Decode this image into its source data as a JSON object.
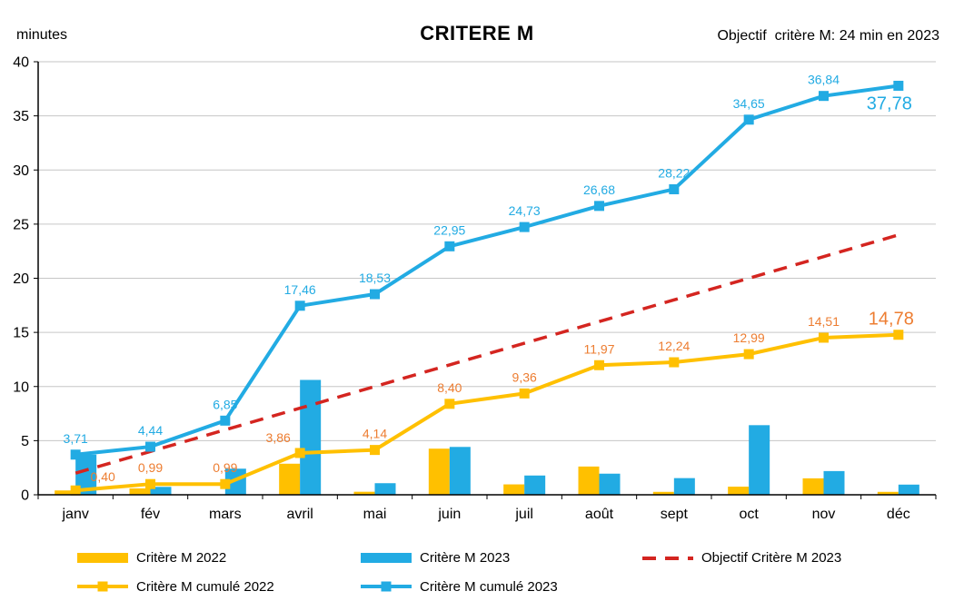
{
  "chart_data": {
    "type": "combo",
    "title": "CRITERE M",
    "ylabel": "minutes",
    "xlabel": "",
    "annotation": "Objectif  critère M: 24 min en 2023",
    "ylim": [
      0,
      40
    ],
    "yticks": [
      0,
      5,
      10,
      15,
      20,
      25,
      30,
      35,
      40
    ],
    "grid": true,
    "legend_position": "bottom",
    "categories": [
      "janv",
      "fév",
      "mars",
      "avril",
      "mai",
      "juin",
      "juil",
      "août",
      "sept",
      "oct",
      "nov",
      "déc"
    ],
    "series": [
      {
        "name": "Critère M 2022",
        "type": "bar",
        "color": "#FFC000",
        "values": [
          0.4,
          0.59,
          0.0,
          2.87,
          0.28,
          4.26,
          0.96,
          2.61,
          0.27,
          0.75,
          1.52,
          0.27
        ]
      },
      {
        "name": "Critère M 2023",
        "type": "bar",
        "color": "#22ABE3",
        "values": [
          3.71,
          0.73,
          2.41,
          10.61,
          1.07,
          4.42,
          1.78,
          1.95,
          1.54,
          6.43,
          2.19,
          0.94
        ]
      },
      {
        "name": "Critère M cumulé 2022",
        "type": "line",
        "color": "#FFC000",
        "label_color": "#ED7D31",
        "values": [
          0.4,
          0.99,
          0.99,
          3.86,
          4.14,
          8.4,
          9.36,
          11.97,
          12.24,
          12.99,
          14.51,
          14.78
        ],
        "point_labels": [
          "0,40",
          "0,99",
          "0,99",
          "3,86",
          "4,14",
          "8,40",
          "9,36",
          "11,97",
          "12,24",
          "12,99",
          "14,51",
          "14,78"
        ],
        "label_offsets": {
          "0": [
            30,
            -10
          ],
          "3": [
            -24,
            -12
          ],
          "11": [
            -8,
            -11
          ]
        },
        "emphasized_last_label": true
      },
      {
        "name": "Critère M cumulé 2023",
        "type": "line",
        "color": "#22ABE3",
        "label_color": "#22ABE3",
        "values": [
          3.71,
          4.44,
          6.85,
          17.46,
          18.53,
          22.95,
          24.73,
          26.68,
          28.22,
          34.65,
          36.84,
          37.78
        ],
        "point_labels": [
          "3,71",
          "4,44",
          "6,85",
          "17,46",
          "18,53",
          "22,95",
          "24,73",
          "26,68",
          "28,22",
          "34,65",
          "36,84",
          "37,78"
        ],
        "label_offsets": {
          "11": [
            -10,
            26
          ]
        },
        "emphasized_last_label": true
      },
      {
        "name": "Objectif Critère M 2023",
        "type": "dashed-line",
        "color": "#D42520",
        "values": [
          2,
          4,
          6,
          8,
          10,
          12,
          14,
          16,
          18,
          20,
          22,
          24
        ]
      }
    ]
  },
  "legend": {
    "items": [
      {
        "label": "Critère M 2022",
        "swatch": "bar",
        "color": "#FFC000"
      },
      {
        "label": "Critère M 2023",
        "swatch": "bar",
        "color": "#22ABE3"
      },
      {
        "label": "Objectif Critère M 2023",
        "swatch": "dashed-line",
        "color": "#D42520"
      },
      {
        "label": "Critère M cumulé 2022",
        "swatch": "line-marker",
        "color": "#FFC000"
      },
      {
        "label": "Critère M cumulé 2023",
        "swatch": "line-marker",
        "color": "#22ABE3"
      }
    ]
  },
  "style": {
    "gridline_color": "#C6C6C6",
    "axis_color": "#000000"
  }
}
